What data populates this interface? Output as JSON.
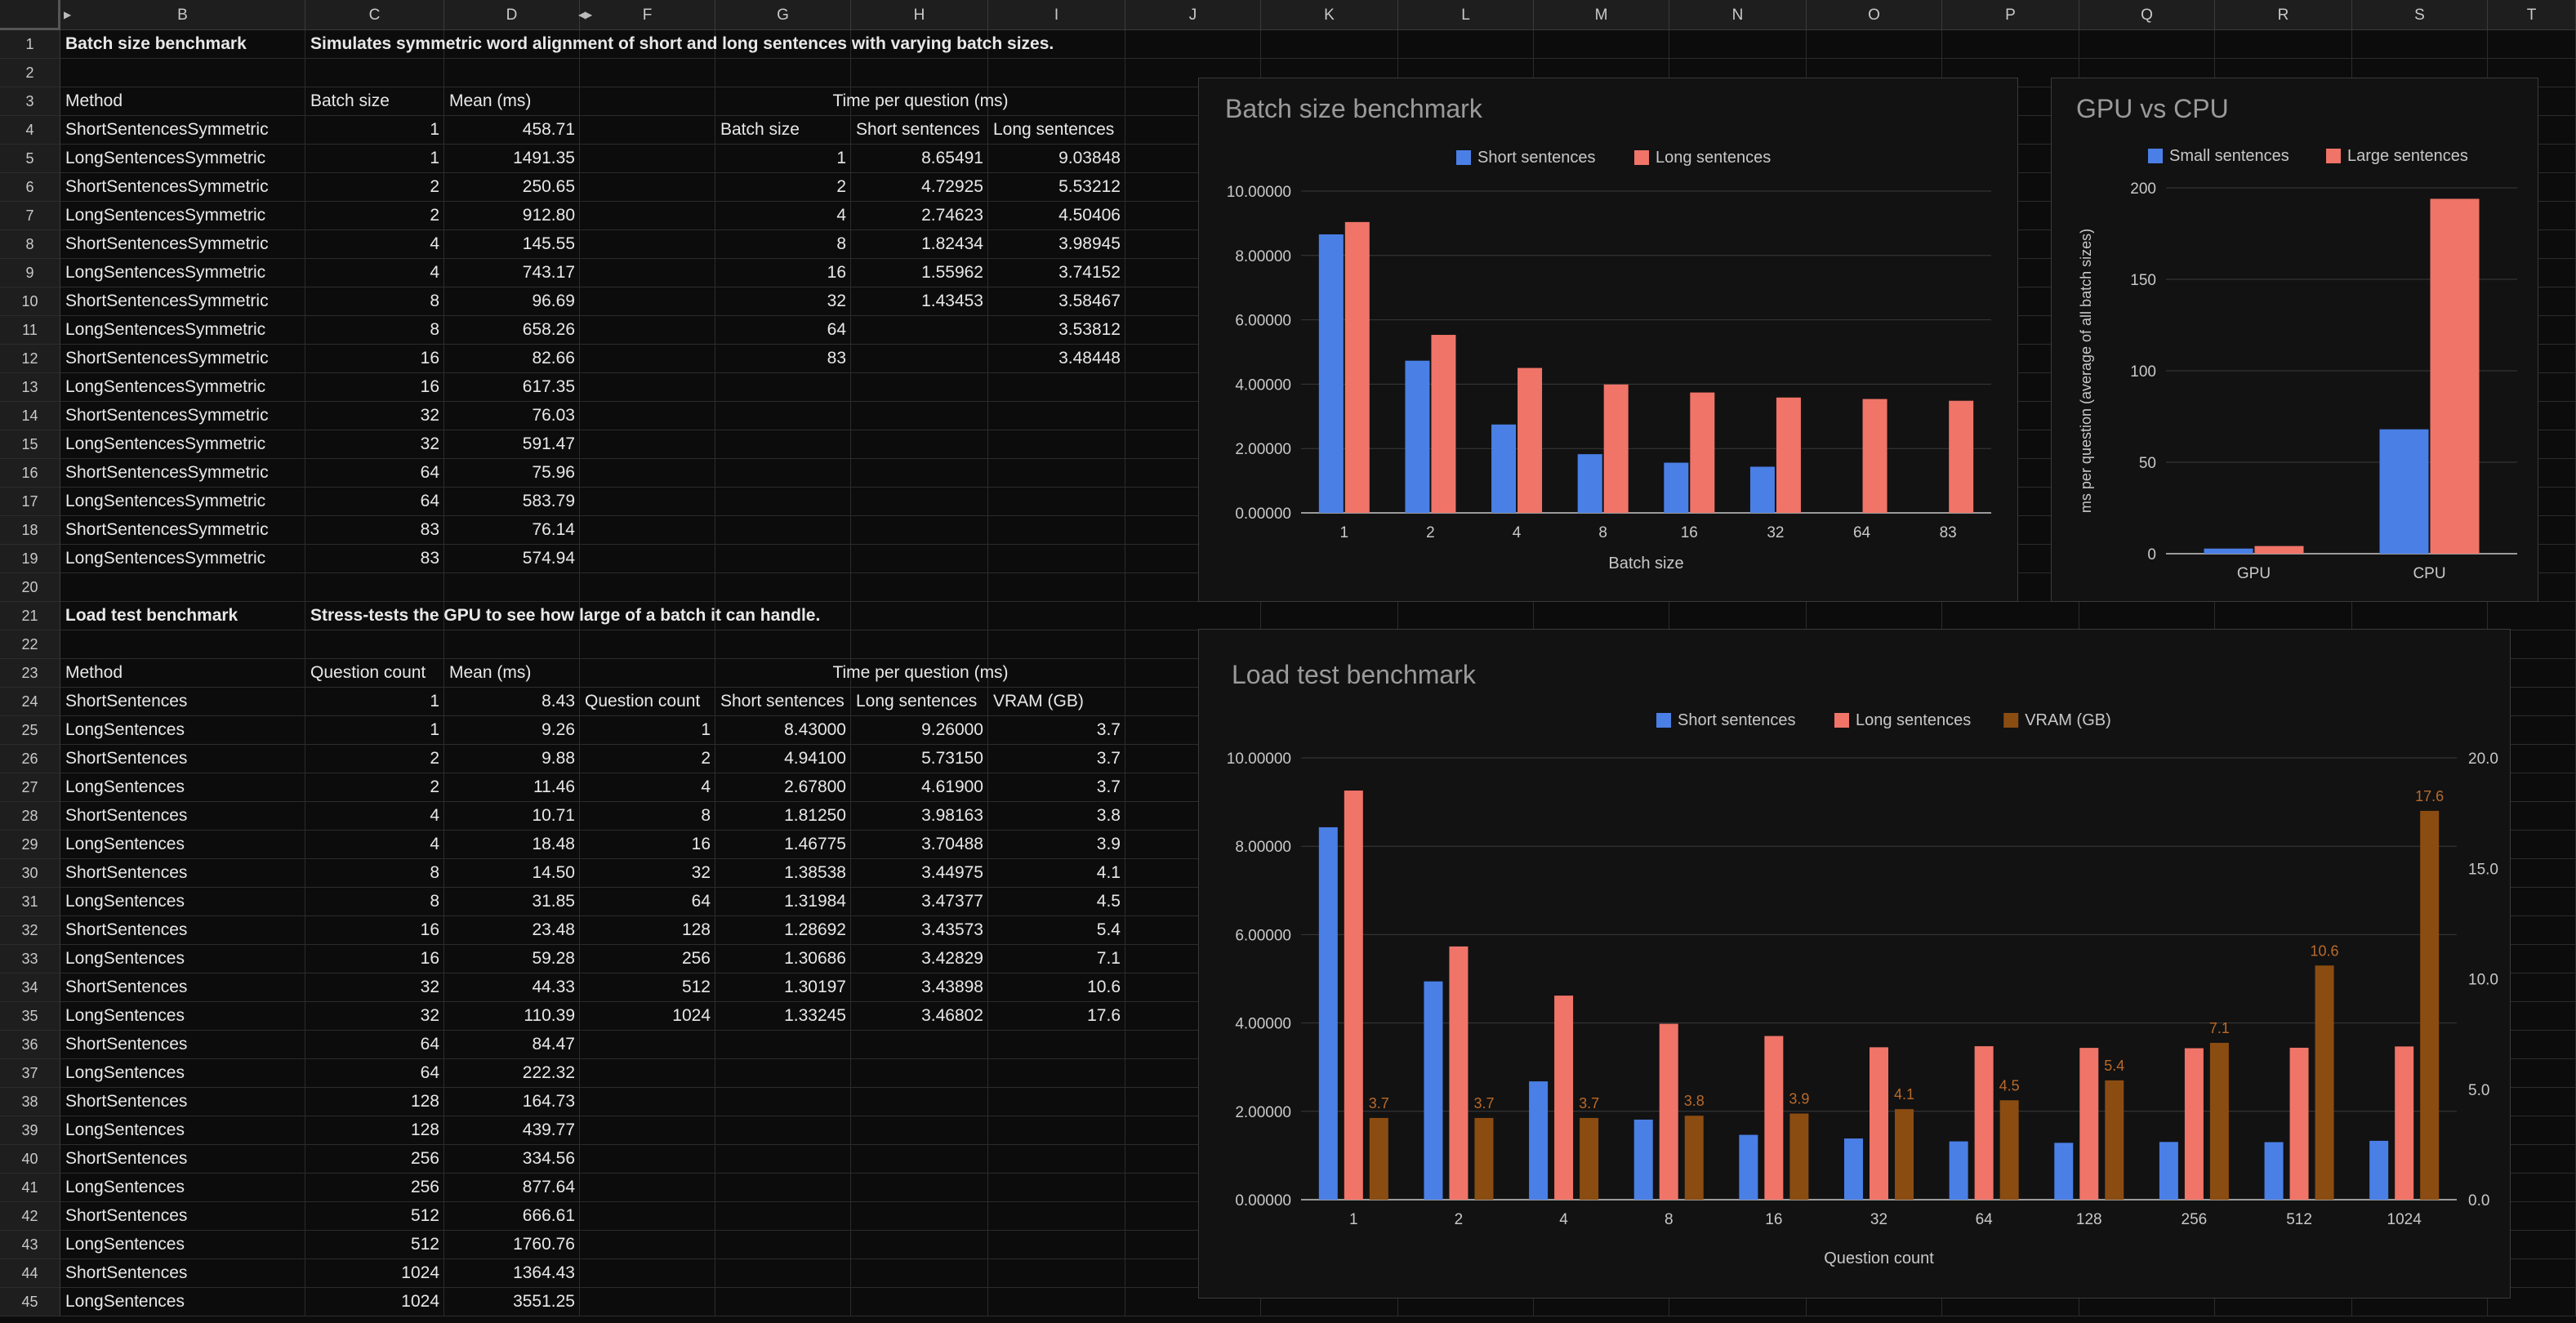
{
  "columns": [
    "B",
    "C",
    "D",
    "F",
    "G",
    "H",
    "I",
    "J",
    "K",
    "L",
    "M",
    "N",
    "O",
    "P",
    "Q",
    "R",
    "S",
    "T"
  ],
  "rows": [
    "1",
    "2",
    "3",
    "4",
    "5",
    "6",
    "7",
    "8",
    "9",
    "10",
    "11",
    "12",
    "13",
    "14",
    "15",
    "16",
    "17",
    "18",
    "19",
    "20",
    "21",
    "22",
    "23",
    "24",
    "25",
    "26",
    "27",
    "28",
    "29",
    "30",
    "31",
    "32",
    "33",
    "34",
    "35",
    "36",
    "37",
    "38",
    "39",
    "40",
    "41",
    "42",
    "43",
    "44",
    "45"
  ],
  "section1": {
    "title": "Batch size benchmark",
    "description": "Simulates symmetric word alignment of short and long sentences with varying batch sizes.",
    "headers": [
      "Method",
      "Batch size",
      "Mean (ms)"
    ],
    "rows": [
      [
        "ShortSentencesSymmetric",
        "1",
        "458.71"
      ],
      [
        "LongSentencesSymmetric",
        "1",
        "1491.35"
      ],
      [
        "ShortSentencesSymmetric",
        "2",
        "250.65"
      ],
      [
        "LongSentencesSymmetric",
        "2",
        "912.80"
      ],
      [
        "ShortSentencesSymmetric",
        "4",
        "145.55"
      ],
      [
        "LongSentencesSymmetric",
        "4",
        "743.17"
      ],
      [
        "ShortSentencesSymmetric",
        "8",
        "96.69"
      ],
      [
        "LongSentencesSymmetric",
        "8",
        "658.26"
      ],
      [
        "ShortSentencesSymmetric",
        "16",
        "82.66"
      ],
      [
        "LongSentencesSymmetric",
        "16",
        "617.35"
      ],
      [
        "ShortSentencesSymmetric",
        "32",
        "76.03"
      ],
      [
        "LongSentencesSymmetric",
        "32",
        "591.47"
      ],
      [
        "ShortSentencesSymmetric",
        "64",
        "75.96"
      ],
      [
        "LongSentencesSymmetric",
        "64",
        "583.79"
      ],
      [
        "ShortSentencesSymmetric",
        "83",
        "76.14"
      ],
      [
        "LongSentencesSymmetric",
        "83",
        "574.94"
      ]
    ],
    "pivot_title": "Time per question (ms)",
    "pivot_headers": [
      "Batch size",
      "Short sentences",
      "Long sentences"
    ],
    "pivot_rows": [
      [
        "1",
        "8.65491",
        "9.03848"
      ],
      [
        "2",
        "4.72925",
        "5.53212"
      ],
      [
        "4",
        "2.74623",
        "4.50406"
      ],
      [
        "8",
        "1.82434",
        "3.98945"
      ],
      [
        "16",
        "1.55962",
        "3.74152"
      ],
      [
        "32",
        "1.43453",
        "3.58467"
      ],
      [
        "64",
        "",
        "3.53812"
      ],
      [
        "83",
        "",
        "3.48448"
      ]
    ]
  },
  "section2": {
    "title": "Load test benchmark",
    "description": "Stress-tests the GPU to see how large of a batch it can handle.",
    "headers": [
      "Method",
      "Question count",
      "Mean (ms)"
    ],
    "rows": [
      [
        "ShortSentences",
        "1",
        "8.43"
      ],
      [
        "LongSentences",
        "1",
        "9.26"
      ],
      [
        "ShortSentences",
        "2",
        "9.88"
      ],
      [
        "LongSentences",
        "2",
        "11.46"
      ],
      [
        "ShortSentences",
        "4",
        "10.71"
      ],
      [
        "LongSentences",
        "4",
        "18.48"
      ],
      [
        "ShortSentences",
        "8",
        "14.50"
      ],
      [
        "LongSentences",
        "8",
        "31.85"
      ],
      [
        "ShortSentences",
        "16",
        "23.48"
      ],
      [
        "LongSentences",
        "16",
        "59.28"
      ],
      [
        "ShortSentences",
        "32",
        "44.33"
      ],
      [
        "LongSentences",
        "32",
        "110.39"
      ],
      [
        "ShortSentences",
        "64",
        "84.47"
      ],
      [
        "LongSentences",
        "64",
        "222.32"
      ],
      [
        "ShortSentences",
        "128",
        "164.73"
      ],
      [
        "LongSentences",
        "128",
        "439.77"
      ],
      [
        "ShortSentences",
        "256",
        "334.56"
      ],
      [
        "LongSentences",
        "256",
        "877.64"
      ],
      [
        "ShortSentences",
        "512",
        "666.61"
      ],
      [
        "LongSentences",
        "512",
        "1760.76"
      ],
      [
        "ShortSentences",
        "1024",
        "1364.43"
      ],
      [
        "LongSentences",
        "1024",
        "3551.25"
      ]
    ],
    "pivot_title": "Time per question (ms)",
    "pivot_headers": [
      "Question count",
      "Short sentences",
      "Long sentences",
      "VRAM (GB)"
    ],
    "pivot_rows": [
      [
        "1",
        "8.43000",
        "9.26000",
        "3.7"
      ],
      [
        "2",
        "4.94100",
        "5.73150",
        "3.7"
      ],
      [
        "4",
        "2.67800",
        "4.61900",
        "3.7"
      ],
      [
        "8",
        "1.81250",
        "3.98163",
        "3.8"
      ],
      [
        "16",
        "1.46775",
        "3.70488",
        "3.9"
      ],
      [
        "32",
        "1.38538",
        "3.44975",
        "4.1"
      ],
      [
        "64",
        "1.31984",
        "3.47377",
        "4.5"
      ],
      [
        "128",
        "1.28692",
        "3.43573",
        "5.4"
      ],
      [
        "256",
        "1.30686",
        "3.42829",
        "7.1"
      ],
      [
        "512",
        "1.30197",
        "3.43898",
        "10.6"
      ],
      [
        "1024",
        "1.33245",
        "3.46802",
        "17.6"
      ]
    ]
  },
  "colors": {
    "blue": "#4a7fe6",
    "red": "#f07468",
    "brown": "#8b4c12",
    "brown_label": "#b96a2a"
  },
  "chart_data": [
    {
      "type": "bar",
      "title": "Batch size benchmark",
      "xlabel": "Batch size",
      "ylabel": "",
      "legend": "top",
      "categories": [
        "1",
        "2",
        "4",
        "8",
        "16",
        "32",
        "64",
        "83"
      ],
      "ylim": [
        0,
        10
      ],
      "yticks": [
        "0.00000",
        "2.00000",
        "4.00000",
        "6.00000",
        "8.00000",
        "10.00000"
      ],
      "series": [
        {
          "name": "Short sentences",
          "color": "#4a7fe6",
          "values": [
            8.65491,
            4.72925,
            2.74623,
            1.82434,
            1.55962,
            1.43453,
            null,
            null
          ]
        },
        {
          "name": "Long sentences",
          "color": "#f07468",
          "values": [
            9.03848,
            5.53212,
            4.50406,
            3.98945,
            3.74152,
            3.58467,
            3.53812,
            3.48448
          ]
        }
      ]
    },
    {
      "type": "bar",
      "title": "GPU vs CPU",
      "xlabel": "",
      "ylabel": "ms per question (average of all batch sizes)",
      "legend": "top",
      "categories": [
        "GPU",
        "CPU"
      ],
      "ylim": [
        0,
        200
      ],
      "yticks": [
        "0",
        "50",
        "100",
        "150",
        "200"
      ],
      "series": [
        {
          "name": "Small sentences",
          "color": "#4a7fe6",
          "values": [
            2.8,
            68
          ]
        },
        {
          "name": "Large sentences",
          "color": "#f07468",
          "values": [
            4.2,
            194
          ]
        }
      ]
    },
    {
      "type": "bar",
      "title": "Load test benchmark",
      "xlabel": "Question count",
      "ylabel": "",
      "legend": "top",
      "categories": [
        "1",
        "2",
        "4",
        "8",
        "16",
        "32",
        "64",
        "128",
        "256",
        "512",
        "1024"
      ],
      "ylim": [
        0,
        10
      ],
      "yticks": [
        "0.00000",
        "2.00000",
        "4.00000",
        "6.00000",
        "8.00000",
        "10.00000"
      ],
      "y2lim": [
        0,
        20
      ],
      "y2ticks": [
        "0.0",
        "5.0",
        "10.0",
        "15.0",
        "20.0"
      ],
      "series": [
        {
          "name": "Short sentences",
          "color": "#4a7fe6",
          "axis": "left",
          "values": [
            8.43,
            4.941,
            2.678,
            1.8125,
            1.46775,
            1.38538,
            1.31984,
            1.28692,
            1.30686,
            1.30197,
            1.33245
          ]
        },
        {
          "name": "Long sentences",
          "color": "#f07468",
          "axis": "left",
          "values": [
            9.26,
            5.7315,
            4.619,
            3.98163,
            3.70488,
            3.44975,
            3.47377,
            3.43573,
            3.42829,
            3.43898,
            3.46802
          ]
        },
        {
          "name": "VRAM (GB)",
          "color": "#8b4c12",
          "axis": "right",
          "values": [
            3.7,
            3.7,
            3.7,
            3.8,
            3.9,
            4.1,
            4.5,
            5.4,
            7.1,
            10.6,
            17.6
          ],
          "labels": [
            "3.7",
            "3.7",
            "3.7",
            "3.8",
            "3.9",
            "4.1",
            "4.5",
            "5.4",
            "7.1",
            "10.6",
            "17.6"
          ]
        }
      ]
    }
  ]
}
